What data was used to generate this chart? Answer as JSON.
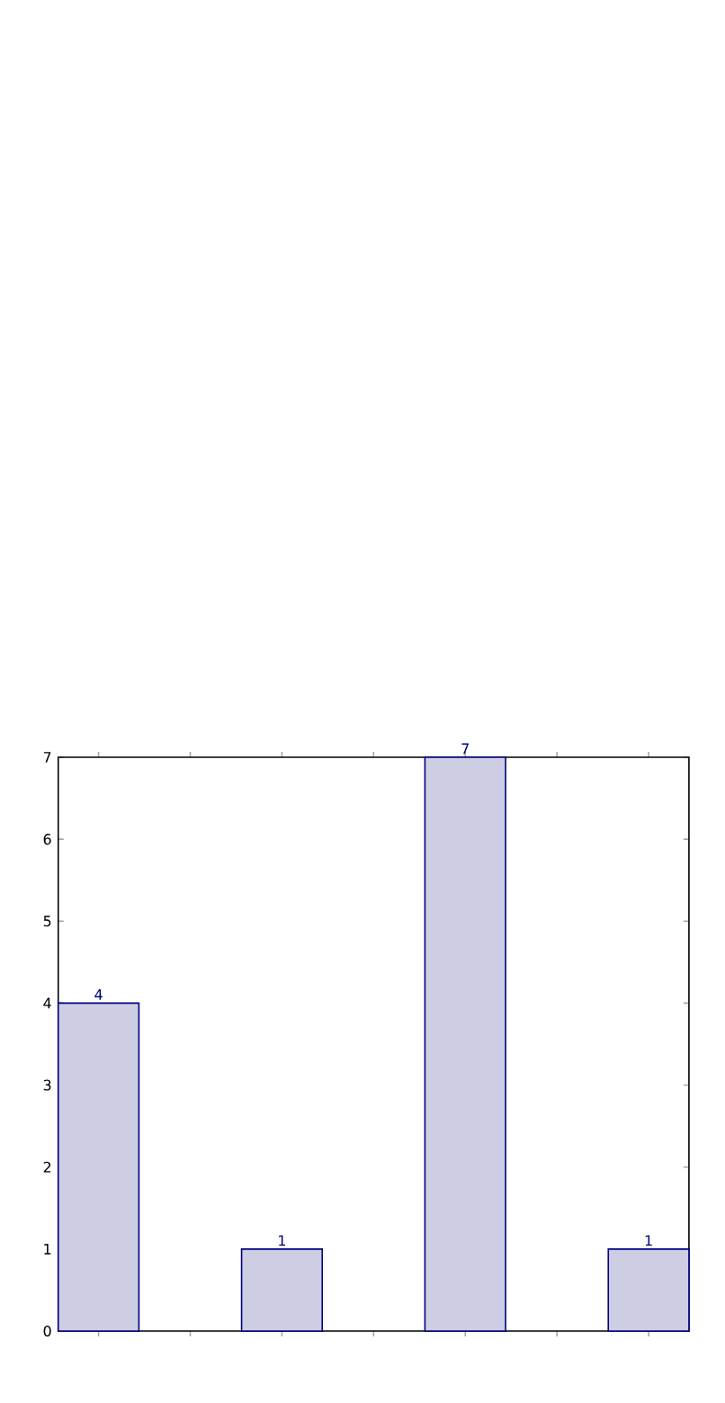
{
  "chart_data": {
    "type": "bar",
    "categories": [
      null,
      null,
      null,
      null
    ],
    "values": [
      4,
      1,
      7,
      1
    ],
    "color": "#cdcde4",
    "ylim": [
      0,
      7
    ],
    "yticks": [
      0,
      1,
      2,
      3,
      4,
      5,
      6,
      7
    ],
    "data_labels": true
  }
}
